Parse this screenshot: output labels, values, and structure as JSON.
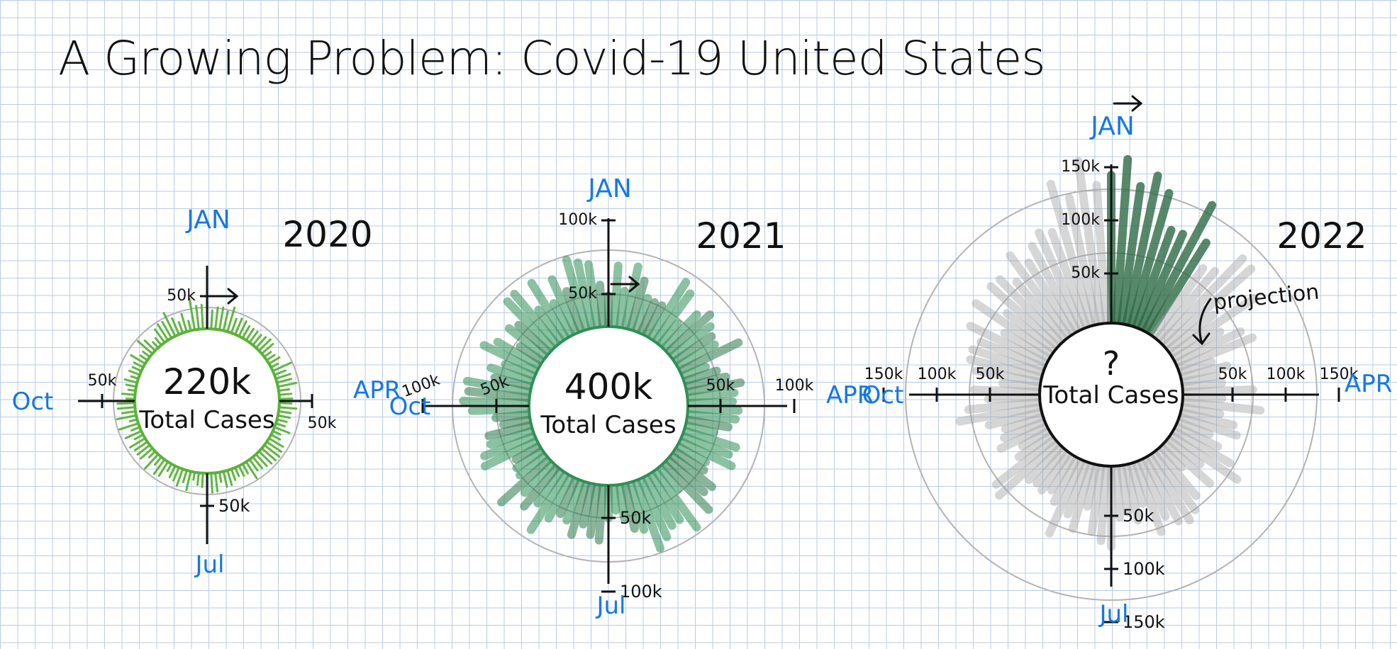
{
  "title": "A Growing Problem: Covid-19 United States",
  "colors": {
    "label_blue": "#1677e6",
    "green_2020": "#5ab238",
    "green_2021": "#2f8f57",
    "dark_green_2022": "#2e6b45",
    "gray_2022": "#a6a6a6",
    "ink": "#111111",
    "grid": "#b9cbe6"
  },
  "chart_data": [
    {
      "type": "radial-bar",
      "year": "2020",
      "center_value": "220k",
      "center_label": "Total Cases",
      "months": {
        "top": "JAN",
        "right": "APR",
        "bottom": "Jul",
        "left": "Oct"
      },
      "tick_labels": [
        "50k"
      ],
      "series_color": "green",
      "note": ""
    },
    {
      "type": "radial-bar",
      "year": "2021",
      "center_value": "400k",
      "center_label": "Total Cases",
      "months": {
        "top": "JAN",
        "right": "APR",
        "bottom": "Jul",
        "left": "Oct"
      },
      "tick_labels": [
        "50k",
        "100k"
      ],
      "series_color": "green",
      "note": ""
    },
    {
      "type": "radial-bar",
      "year": "2022",
      "center_value": "?",
      "center_label": "Total Cases",
      "months": {
        "top": "JAN",
        "right": "APR",
        "bottom": "Jul",
        "left": "Oct"
      },
      "tick_labels": [
        "50k",
        "100k",
        "150k"
      ],
      "series_color": "gray",
      "note": "projection"
    }
  ]
}
